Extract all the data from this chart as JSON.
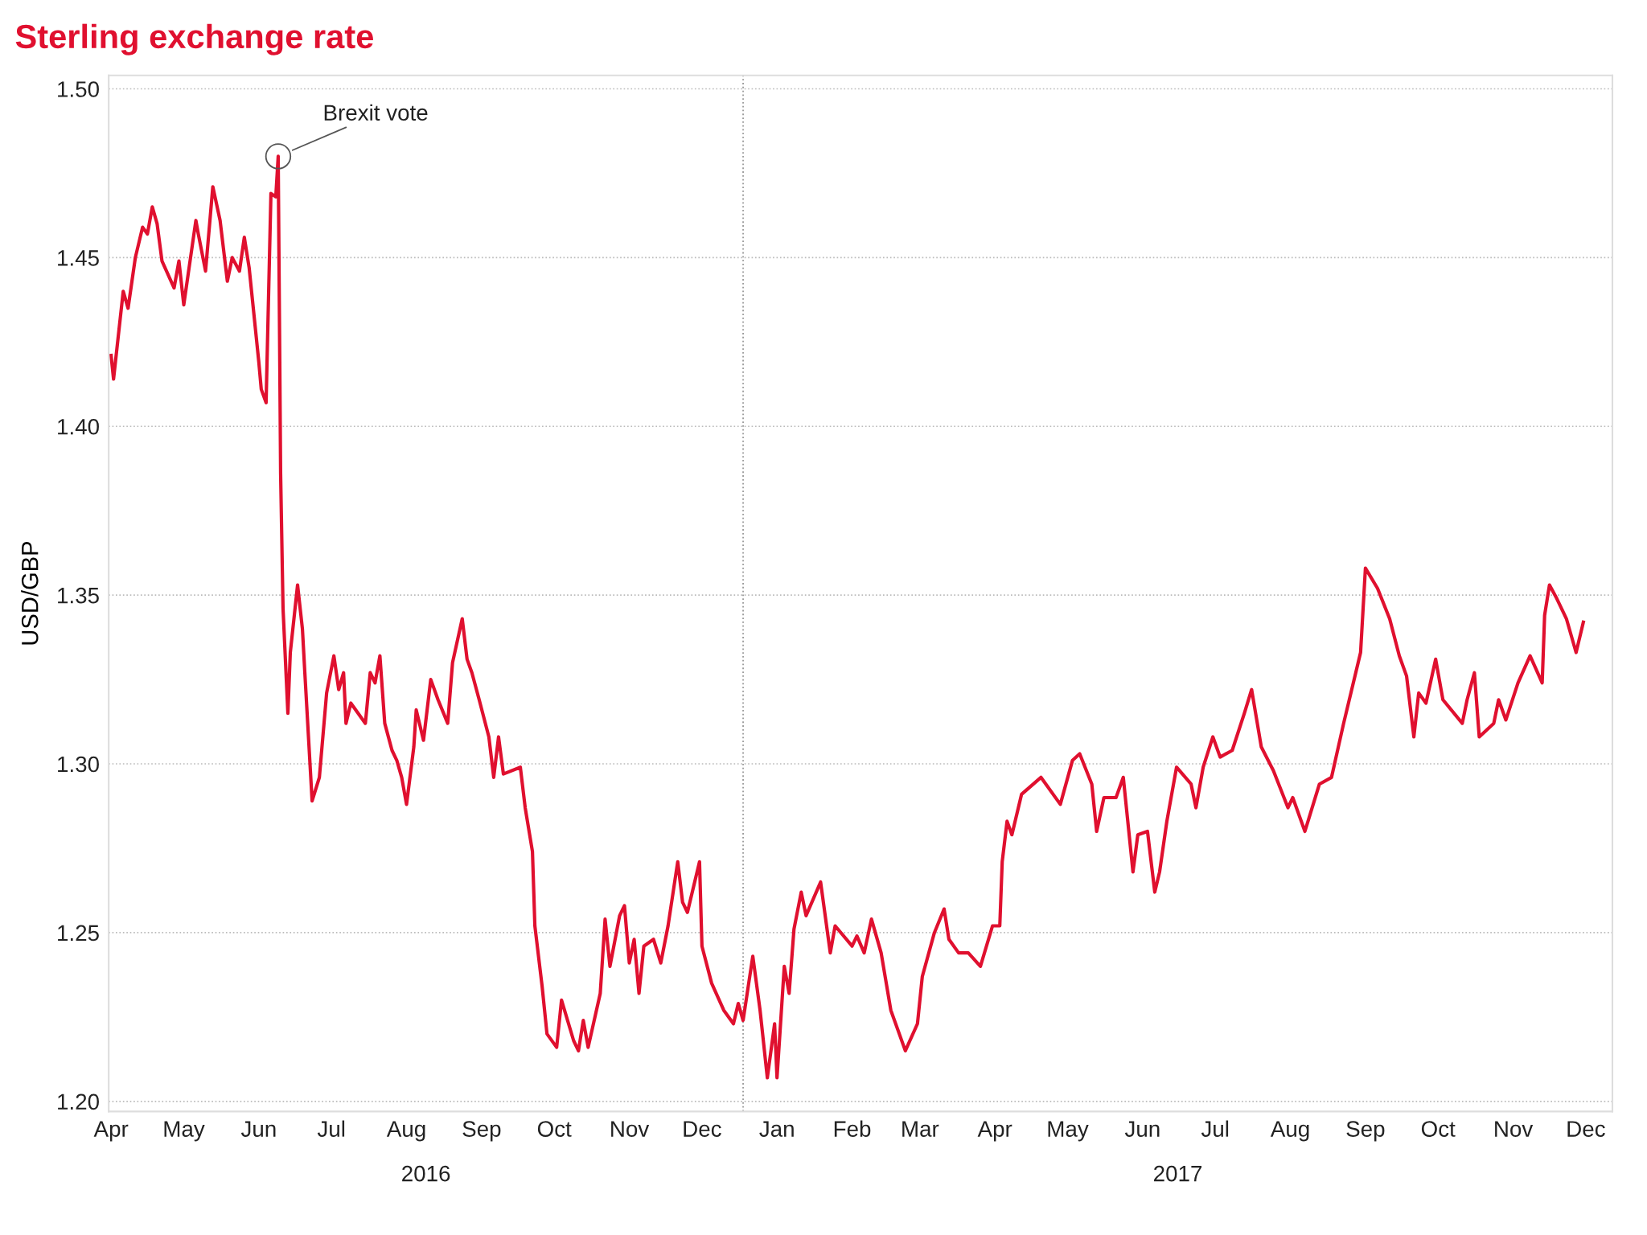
{
  "chart_data": {
    "type": "line",
    "title": "Sterling exchange rate",
    "ylabel": "USD/GBP",
    "x": [
      "2016-04-15",
      "2016-04-16",
      "2016-04-20",
      "2016-04-22",
      "2016-04-25",
      "2016-04-28",
      "2016-04-30",
      "2016-05-02",
      "2016-05-04",
      "2016-05-06",
      "2016-05-11",
      "2016-05-13",
      "2016-05-15",
      "2016-05-20",
      "2016-05-21",
      "2016-05-24",
      "2016-05-27",
      "2016-05-30",
      "2016-06-02",
      "2016-06-04",
      "2016-06-07",
      "2016-06-09",
      "2016-06-11",
      "2016-06-13",
      "2016-06-15",
      "2016-06-16",
      "2016-06-18",
      "2016-06-20",
      "2016-06-22",
      "2016-06-23",
      "2016-06-24",
      "2016-06-25",
      "2016-06-27",
      "2016-06-28",
      "2016-07-01",
      "2016-07-03",
      "2016-07-04",
      "2016-07-07",
      "2016-07-10",
      "2016-07-13",
      "2016-07-16",
      "2016-07-18",
      "2016-07-20",
      "2016-07-21",
      "2016-07-23",
      "2016-07-29",
      "2016-07-31",
      "2016-08-02",
      "2016-08-04",
      "2016-08-06",
      "2016-08-09",
      "2016-08-11",
      "2016-08-13",
      "2016-08-15",
      "2016-08-18",
      "2016-08-19",
      "2016-08-22",
      "2016-08-25",
      "2016-08-28",
      "2016-09-01",
      "2016-09-03",
      "2016-09-07",
      "2016-09-09",
      "2016-09-11",
      "2016-09-14",
      "2016-09-18",
      "2016-09-20",
      "2016-09-22",
      "2016-09-24",
      "2016-10-01",
      "2016-10-03",
      "2016-10-06",
      "2016-10-07",
      "2016-10-10",
      "2016-10-12",
      "2016-10-16",
      "2016-10-18",
      "2016-10-23",
      "2016-10-25",
      "2016-10-27",
      "2016-10-29",
      "2016-11-03",
      "2016-11-05",
      "2016-11-07",
      "2016-11-11",
      "2016-11-13",
      "2016-11-15",
      "2016-11-17",
      "2016-11-19",
      "2016-11-21",
      "2016-11-25",
      "2016-11-28",
      "2016-12-01",
      "2016-12-05",
      "2016-12-07",
      "2016-12-09",
      "2016-12-14",
      "2016-12-15",
      "2016-12-19",
      "2016-12-24",
      "2016-12-28",
      "2016-12-30",
      "2017-01-01",
      "2017-01-05",
      "2017-01-08",
      "2017-01-11",
      "2017-01-14",
      "2017-01-15",
      "2017-01-18",
      "2017-01-20",
      "2017-01-22",
      "2017-01-25",
      "2017-01-27",
      "2017-02-02",
      "2017-02-06",
      "2017-02-08",
      "2017-02-15",
      "2017-02-17",
      "2017-02-20",
      "2017-02-23",
      "2017-02-27",
      "2017-03-03",
      "2017-03-09",
      "2017-03-14",
      "2017-03-16",
      "2017-03-21",
      "2017-03-25",
      "2017-03-27",
      "2017-03-31",
      "2017-04-04",
      "2017-04-09",
      "2017-04-14",
      "2017-04-17",
      "2017-04-18",
      "2017-04-20",
      "2017-04-22",
      "2017-04-26",
      "2017-05-04",
      "2017-05-12",
      "2017-05-17",
      "2017-05-20",
      "2017-05-25",
      "2017-05-27",
      "2017-05-30",
      "2017-06-04",
      "2017-06-07",
      "2017-06-11",
      "2017-06-13",
      "2017-06-17",
      "2017-06-20",
      "2017-06-22",
      "2017-06-25",
      "2017-06-29",
      "2017-07-05",
      "2017-07-07",
      "2017-07-10",
      "2017-07-14",
      "2017-07-17",
      "2017-07-22",
      "2017-07-27",
      "2017-07-30",
      "2017-08-03",
      "2017-08-08",
      "2017-08-14",
      "2017-08-16",
      "2017-08-21",
      "2017-08-27",
      "2017-09-01",
      "2017-09-06",
      "2017-09-11",
      "2017-09-13",
      "2017-09-15",
      "2017-09-20",
      "2017-09-25",
      "2017-09-29",
      "2017-10-02",
      "2017-10-05",
      "2017-10-07",
      "2017-10-10",
      "2017-10-14",
      "2017-10-17",
      "2017-10-25",
      "2017-10-27",
      "2017-10-30",
      "2017-11-01",
      "2017-11-07",
      "2017-11-09",
      "2017-11-12",
      "2017-11-17",
      "2017-11-22",
      "2017-11-27",
      "2017-11-28",
      "2017-11-30",
      "2017-12-03",
      "2017-12-07",
      "2017-12-11",
      "2017-12-14"
    ],
    "series": [
      {
        "color": "#e0102f",
        "values": [
          1.421,
          1.414,
          1.44,
          1.435,
          1.45,
          1.459,
          1.457,
          1.465,
          1.46,
          1.449,
          1.441,
          1.449,
          1.436,
          1.461,
          1.457,
          1.446,
          1.471,
          1.461,
          1.443,
          1.45,
          1.446,
          1.456,
          1.447,
          1.433,
          1.419,
          1.411,
          1.407,
          1.469,
          1.468,
          1.48,
          1.386,
          1.346,
          1.315,
          1.333,
          1.353,
          1.34,
          1.327,
          1.289,
          1.296,
          1.321,
          1.332,
          1.322,
          1.327,
          1.312,
          1.318,
          1.312,
          1.327,
          1.324,
          1.332,
          1.312,
          1.304,
          1.301,
          1.296,
          1.288,
          1.305,
          1.316,
          1.307,
          1.325,
          1.319,
          1.312,
          1.33,
          1.343,
          1.331,
          1.327,
          1.319,
          1.308,
          1.296,
          1.308,
          1.297,
          1.299,
          1.287,
          1.274,
          1.252,
          1.234,
          1.22,
          1.216,
          1.23,
          1.218,
          1.215,
          1.224,
          1.216,
          1.232,
          1.254,
          1.24,
          1.255,
          1.258,
          1.241,
          1.248,
          1.232,
          1.246,
          1.248,
          1.241,
          1.252,
          1.271,
          1.259,
          1.256,
          1.271,
          1.246,
          1.235,
          1.227,
          1.223,
          1.229,
          1.224,
          1.243,
          1.227,
          1.207,
          1.223,
          1.207,
          1.24,
          1.232,
          1.251,
          1.262,
          1.255,
          1.265,
          1.244,
          1.252,
          1.246,
          1.249,
          1.244,
          1.254,
          1.244,
          1.227,
          1.215,
          1.223,
          1.237,
          1.25,
          1.257,
          1.248,
          1.244,
          1.244,
          1.24,
          1.252,
          1.252,
          1.271,
          1.283,
          1.279,
          1.291,
          1.296,
          1.288,
          1.301,
          1.303,
          1.294,
          1.28,
          1.29,
          1.29,
          1.296,
          1.268,
          1.279,
          1.28,
          1.262,
          1.268,
          1.283,
          1.299,
          1.294,
          1.287,
          1.299,
          1.308,
          1.302,
          1.304,
          1.315,
          1.322,
          1.305,
          1.298,
          1.287,
          1.29,
          1.28,
          1.294,
          1.296,
          1.312,
          1.327,
          1.333,
          1.358,
          1.352,
          1.343,
          1.332,
          1.326,
          1.308,
          1.321,
          1.318,
          1.331,
          1.319,
          1.312,
          1.319,
          1.327,
          1.308,
          1.312,
          1.319,
          1.313,
          1.324,
          1.332,
          1.324,
          1.344,
          1.353,
          1.349,
          1.343,
          1.333,
          1.342
        ]
      }
    ],
    "xlim": [
      "2016-04-14",
      "2017-12-26"
    ],
    "xticks": [
      {
        "value": "2016-04-15",
        "label": "Apr"
      },
      {
        "value": "2016-05-15",
        "label": "May"
      },
      {
        "value": "2016-06-15",
        "label": "Jun"
      },
      {
        "value": "2016-07-15",
        "label": "Jul"
      },
      {
        "value": "2016-08-15",
        "label": "Aug"
      },
      {
        "value": "2016-09-15",
        "label": "Sep"
      },
      {
        "value": "2016-10-15",
        "label": "Oct"
      },
      {
        "value": "2016-11-15",
        "label": "Nov"
      },
      {
        "value": "2016-12-15",
        "label": "Dec"
      },
      {
        "value": "2017-01-15",
        "label": "Jan"
      },
      {
        "value": "2017-02-15",
        "label": "Feb"
      },
      {
        "value": "2017-03-15",
        "label": "Mar"
      },
      {
        "value": "2017-04-15",
        "label": "Apr"
      },
      {
        "value": "2017-05-15",
        "label": "May"
      },
      {
        "value": "2017-06-15",
        "label": "Jun"
      },
      {
        "value": "2017-07-15",
        "label": "Jul"
      },
      {
        "value": "2017-08-15",
        "label": "Aug"
      },
      {
        "value": "2017-09-15",
        "label": "Sep"
      },
      {
        "value": "2017-10-15",
        "label": "Oct"
      },
      {
        "value": "2017-11-15",
        "label": "Nov"
      },
      {
        "value": "2017-12-15",
        "label": "Dec"
      }
    ],
    "ylim": [
      1.197,
      1.504
    ],
    "yticks": [
      {
        "value": 1.2,
        "label": "1.20"
      },
      {
        "value": 1.25,
        "label": "1.25"
      },
      {
        "value": 1.3,
        "label": "1.30"
      },
      {
        "value": 1.35,
        "label": "1.35"
      },
      {
        "value": 1.4,
        "label": "1.40"
      },
      {
        "value": 1.45,
        "label": "1.45"
      },
      {
        "value": 1.5,
        "label": "1.50"
      }
    ],
    "grid": "y",
    "marker": "none",
    "line_style": "solid",
    "ref_lines": [
      {
        "axis": "x",
        "value": "2017-01-01",
        "color": "#999999",
        "line_style": "dotted"
      }
    ],
    "annotations": [
      {
        "text": "Brexit vote",
        "x": "2016-06-23",
        "y": 1.48
      },
      "2016",
      "2017"
    ]
  }
}
